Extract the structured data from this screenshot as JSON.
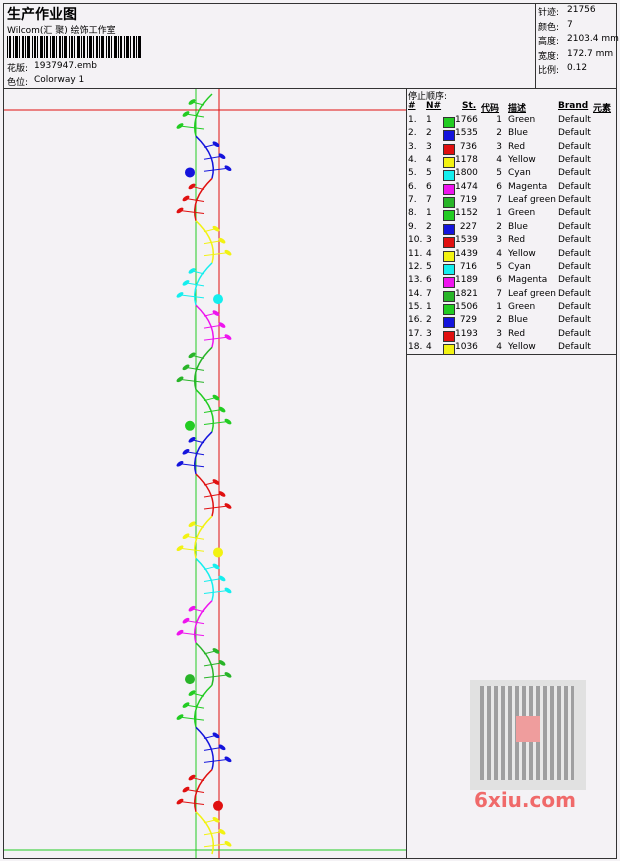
{
  "header": {
    "title": "生产作业图",
    "company": "Wilcom(汇 聚) 绘饰工作室",
    "design_label": "花版:",
    "design": "1937947.emb",
    "colorway_label": "色位:",
    "colorway": "Colorway 1"
  },
  "stats": [
    {
      "label": "针迹:",
      "value": "21756"
    },
    {
      "label": "颜色:",
      "value": "7"
    },
    {
      "label": "高度:",
      "value": "2103.4 mm"
    },
    {
      "label": "宽度:",
      "value": "172.7 mm"
    },
    {
      "label": "比例:",
      "value": "0.12"
    }
  ],
  "stops": {
    "title": "停止顺序:",
    "columns": [
      "#",
      "N#",
      "St.",
      "代码",
      "描述",
      "Brand",
      "元素"
    ],
    "rows": [
      [
        "1.",
        "1",
        "#22cc22",
        "1766",
        "1",
        "Green",
        "Default"
      ],
      [
        "2.",
        "2",
        "#1414dc",
        "1535",
        "2",
        "Blue",
        "Default"
      ],
      [
        "3.",
        "3",
        "#e01010",
        "736",
        "3",
        "Red",
        "Default"
      ],
      [
        "4.",
        "4",
        "#f2f212",
        "1178",
        "4",
        "Yellow",
        "Default"
      ],
      [
        "5.",
        "5",
        "#14eeee",
        "1800",
        "5",
        "Cyan",
        "Default"
      ],
      [
        "6.",
        "6",
        "#ee14ee",
        "1474",
        "6",
        "Magenta",
        "Default"
      ],
      [
        "7.",
        "7",
        "#28b428",
        "719",
        "7",
        "Leaf green",
        "Default"
      ],
      [
        "8.",
        "1",
        "#22cc22",
        "1152",
        "1",
        "Green",
        "Default"
      ],
      [
        "9.",
        "2",
        "#1414dc",
        "227",
        "2",
        "Blue",
        "Default"
      ],
      [
        "10.",
        "3",
        "#e01010",
        "1539",
        "3",
        "Red",
        "Default"
      ],
      [
        "11.",
        "4",
        "#f2f212",
        "1439",
        "4",
        "Yellow",
        "Default"
      ],
      [
        "12.",
        "5",
        "#14eeee",
        "716",
        "5",
        "Cyan",
        "Default"
      ],
      [
        "13.",
        "6",
        "#ee14ee",
        "1189",
        "6",
        "Magenta",
        "Default"
      ],
      [
        "14.",
        "7",
        "#28b428",
        "1821",
        "7",
        "Leaf green",
        "Default"
      ],
      [
        "15.",
        "1",
        "#22cc22",
        "1506",
        "1",
        "Green",
        "Default"
      ],
      [
        "16.",
        "2",
        "#1414dc",
        "729",
        "2",
        "Blue",
        "Default"
      ],
      [
        "17.",
        "3",
        "#e01010",
        "1193",
        "3",
        "Red",
        "Default"
      ],
      [
        "18.",
        "4",
        "#f2f212",
        "1036",
        "4",
        "Yellow",
        "Default"
      ]
    ]
  },
  "watermark": "6xiu.com"
}
